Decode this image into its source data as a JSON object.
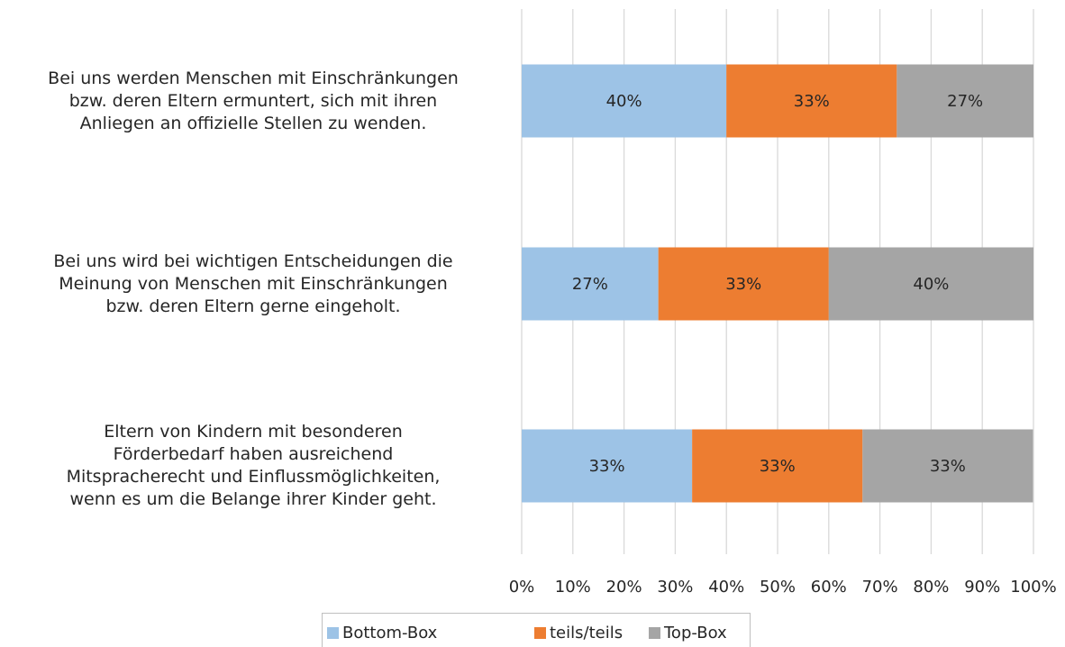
{
  "chart_data": {
    "type": "stacked-barh",
    "categories": [
      "Bei uns werden Menschen mit Einschränkungen\nbzw. deren Eltern ermuntert, sich mit ihren\nAnliegen an offizielle Stellen zu wenden.",
      "Bei uns wird bei wichtigen Entscheidungen die\nMeinung von Menschen mit Einschränkungen\nbzw. deren Eltern gerne eingeholt.",
      "Eltern von Kindern mit besonderen\nFörderbedarf haben ausreichend\nMitspracherecht und Einflussmöglichkeiten,\nwenn es um die Belange ihrer Kinder geht."
    ],
    "series": [
      {
        "name": "Bottom-Box",
        "color": "#9dc3e6",
        "values": [
          40,
          26.7,
          33.3
        ],
        "value_labels": [
          "40%",
          "27%",
          "33%"
        ]
      },
      {
        "name": "teils/teils",
        "color": "#ed7d31",
        "values": [
          33.3,
          33.3,
          33.3
        ],
        "value_labels": [
          "33%",
          "33%",
          "33%"
        ]
      },
      {
        "name": "Top-Box",
        "color": "#a5a5a5",
        "values": [
          26.7,
          40,
          33.3
        ],
        "value_labels": [
          "27%",
          "40%",
          "33%"
        ]
      }
    ],
    "xlim": [
      0,
      100
    ],
    "xticks": [
      {
        "value": 0,
        "label": "0%"
      },
      {
        "value": 10,
        "label": "10%"
      },
      {
        "value": 20,
        "label": "20%"
      },
      {
        "value": 30,
        "label": "30%"
      },
      {
        "value": 40,
        "label": "40%"
      },
      {
        "value": 50,
        "label": "50%"
      },
      {
        "value": 60,
        "label": "60%"
      },
      {
        "value": 70,
        "label": "70%"
      },
      {
        "value": 80,
        "label": "80%"
      },
      {
        "value": 90,
        "label": "90%"
      },
      {
        "value": 100,
        "label": "100%"
      }
    ],
    "grid": true,
    "legend": "bottom"
  }
}
